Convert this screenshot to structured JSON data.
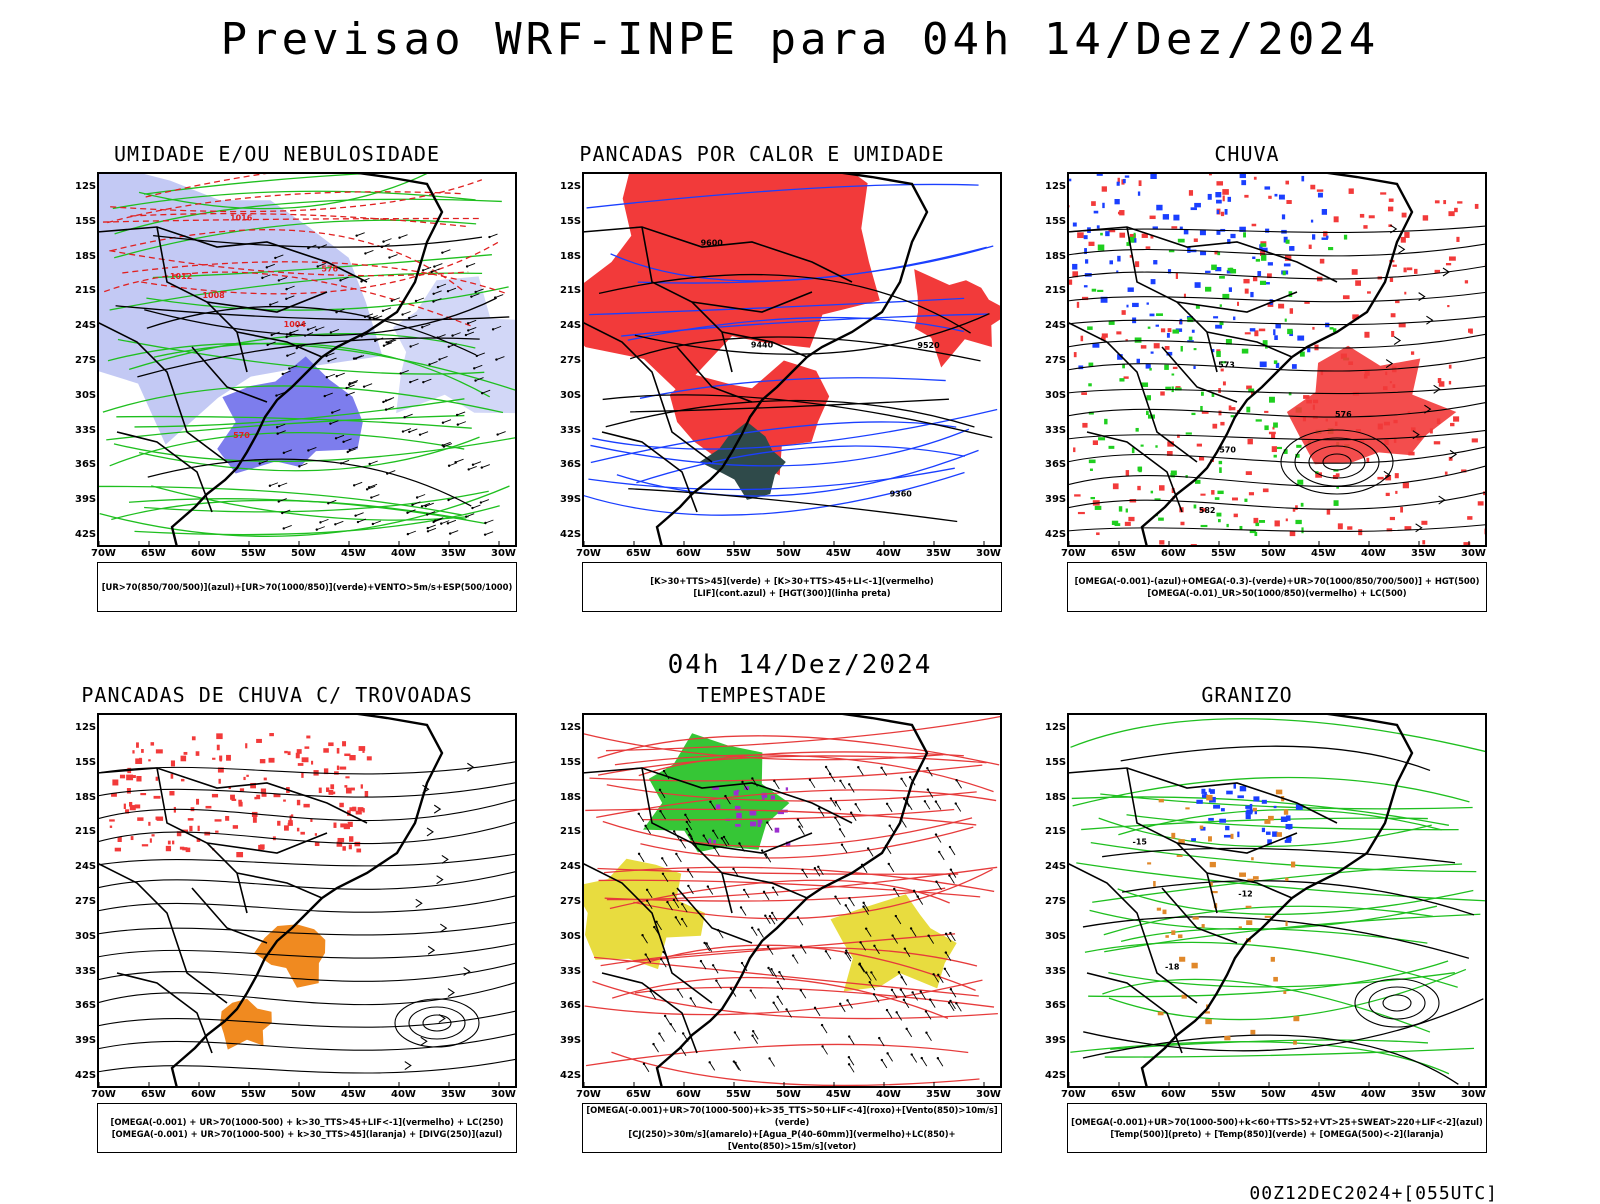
{
  "header": {
    "title": "Previsao WRF-INPE  para 04h 14/Dez/2024",
    "mid_title": "04h 14/Dez/2024",
    "footer": "00Z12DEC2024+[055UTC]"
  },
  "axes": {
    "lat_labels": [
      "12S",
      "15S",
      "18S",
      "21S",
      "24S",
      "27S",
      "30S",
      "33S",
      "36S",
      "39S",
      "42S"
    ],
    "lon_labels": [
      "70W",
      "65W",
      "60W",
      "55W",
      "50W",
      "45W",
      "40W",
      "35W",
      "30W"
    ]
  },
  "panels": [
    {
      "title": "UMIDADE E/OU NEBULOSIDADE",
      "legend": [
        "[UR>70(850/700/500)](azul)+[UR>70(1000/850)](verde)+VENTO>5m/s+ESP(500/1000)"
      ],
      "contour_labels": [
        "1008",
        "1012",
        "1004",
        "1016",
        "570",
        "576"
      ]
    },
    {
      "title": "PANCADAS POR CALOR E UMIDADE",
      "legend": [
        "[K>30+TTS>45](verde) + [K>30+TTS>45+LI<-1](vermelho)",
        "[LIF](cont.azul) + [HGT(300)](linha preta)"
      ],
      "contour_labels": [
        "9600",
        "9520",
        "9440",
        "9360"
      ]
    },
    {
      "title": "CHUVA",
      "legend": [
        "[OMEGA(-0.001)-(azul)+OMEGA(-0.3)-(verde)+UR>70(1000/850/700/500)] + HGT(500)",
        "[OMEGA(-0.01)_UR>50(1000/850)(vermelho) + LC(500)"
      ],
      "contour_labels": [
        "582",
        "576",
        "573",
        "570"
      ]
    },
    {
      "title": "PANCADAS DE CHUVA C/ TROVOADAS",
      "legend": [
        "[OMEGA(-0.001) + UR>70(1000-500) + k>30_TTS>45+LIF<-1](vermelho) + LC(250)",
        "[OMEGA(-0.001) + UR>70(1000-500) + k>30_TTS>45](laranja) + [DIVG(250)](azul)"
      ],
      "contour_labels": []
    },
    {
      "title": "TEMPESTADE",
      "legend": [
        "[OMEGA(-0.001)+UR>70(1000-500)+k>35_TTS>50+LIF<-4](roxo)+[Vento(850)>10m/s](verde)",
        "[CJ(250)>30m/s](amarelo)+[Agua_P(40-60mm)](vermelho)+LC(850)+[Vento(850)>15m/s](vetor)"
      ],
      "contour_labels": []
    },
    {
      "title": "GRANIZO",
      "legend": [
        "[OMEGA(-0.001)+UR>70(1000-500)+k<60+TTS>52+VT>25+SWEAT>220+LIF<-2](azul)",
        "[Temp(500)](preto) + [Temp(850)](verde) + [OMEGA(500)<-2](laranja)"
      ],
      "contour_labels": [
        "-12",
        "-15",
        "-18"
      ]
    }
  ]
}
